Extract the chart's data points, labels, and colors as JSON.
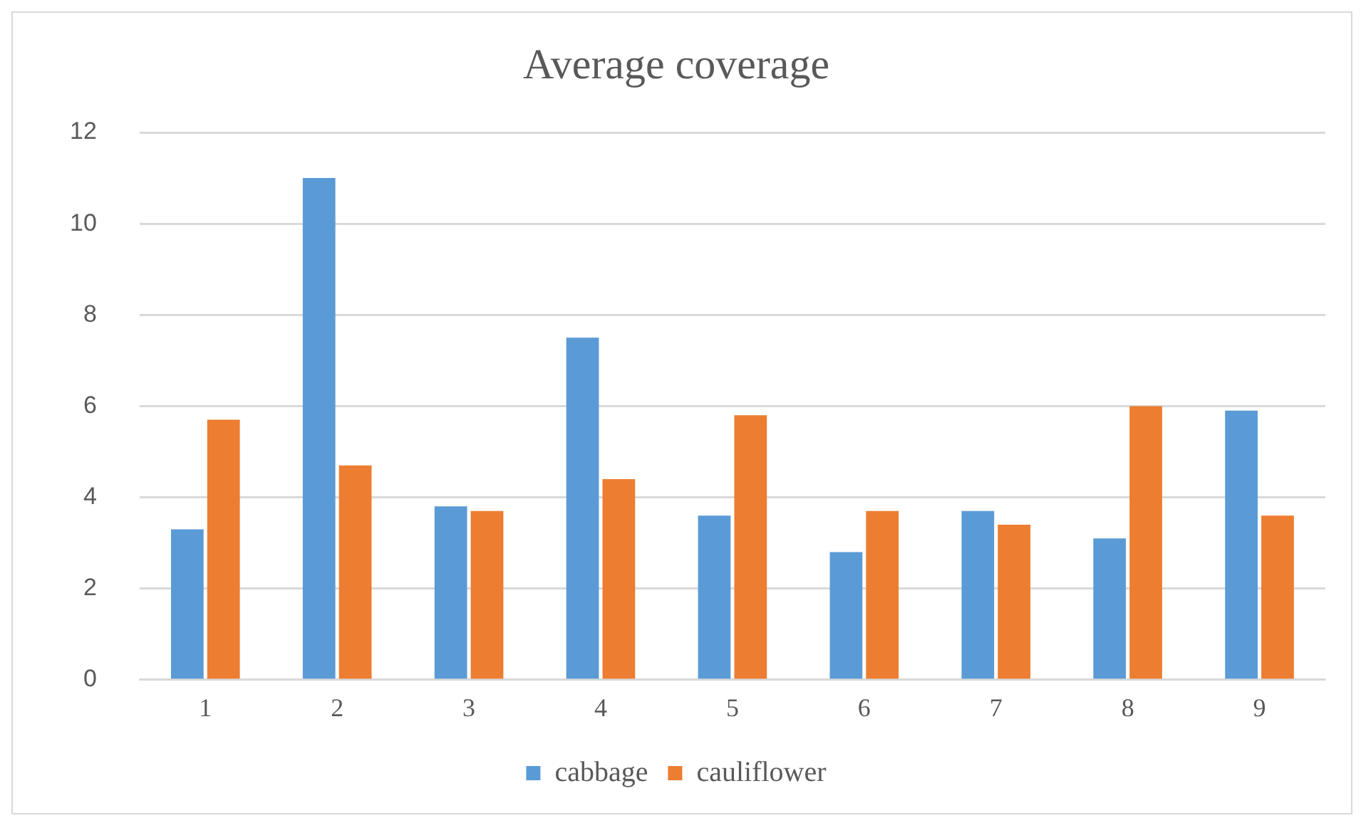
{
  "chart_data": {
    "type": "bar",
    "title": "Average coverage",
    "categories": [
      "1",
      "2",
      "3",
      "4",
      "5",
      "6",
      "7",
      "8",
      "9"
    ],
    "series": [
      {
        "name": "cabbage",
        "color": "#5b9bd5",
        "values": [
          3.3,
          11.0,
          3.8,
          7.5,
          3.6,
          2.8,
          3.7,
          3.1,
          5.9
        ]
      },
      {
        "name": "cauliflower",
        "color": "#ed7d31",
        "values": [
          5.7,
          4.7,
          3.7,
          4.4,
          5.8,
          3.7,
          3.4,
          6.0,
          3.6
        ]
      }
    ],
    "ylim": [
      0,
      12
    ],
    "yticks": [
      0,
      2,
      4,
      6,
      8,
      10,
      12
    ],
    "grid": "y",
    "legend": "bottom"
  }
}
